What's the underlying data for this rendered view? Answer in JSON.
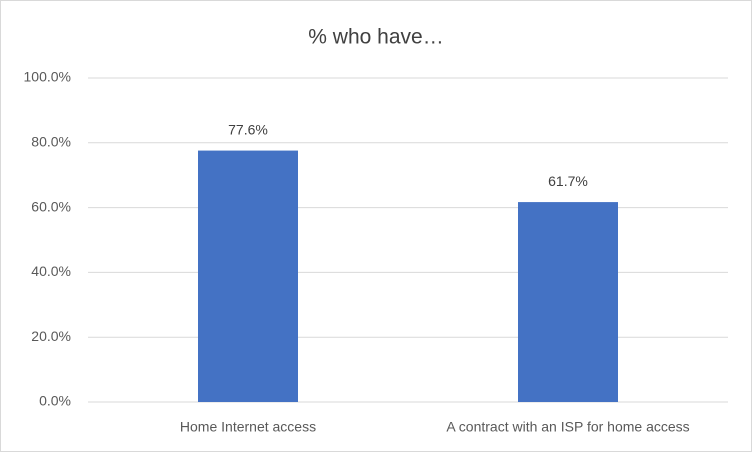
{
  "chart_data": {
    "type": "bar",
    "title": "% who have…",
    "categories": [
      "Home Internet access",
      "A contract with an ISP for home access"
    ],
    "values": [
      77.6,
      61.7
    ],
    "value_labels": [
      "77.6%",
      "61.7%"
    ],
    "color": "#4472c4",
    "ylim": [
      0,
      100
    ],
    "yticks": [
      {
        "value": 0,
        "label": "0.0%"
      },
      {
        "value": 20,
        "label": "20.0%"
      },
      {
        "value": 40,
        "label": "40.0%"
      },
      {
        "value": 60,
        "label": "60.0%"
      },
      {
        "value": 80,
        "label": "80.0%"
      },
      {
        "value": 100,
        "label": "100.0%"
      }
    ],
    "grid": true
  }
}
